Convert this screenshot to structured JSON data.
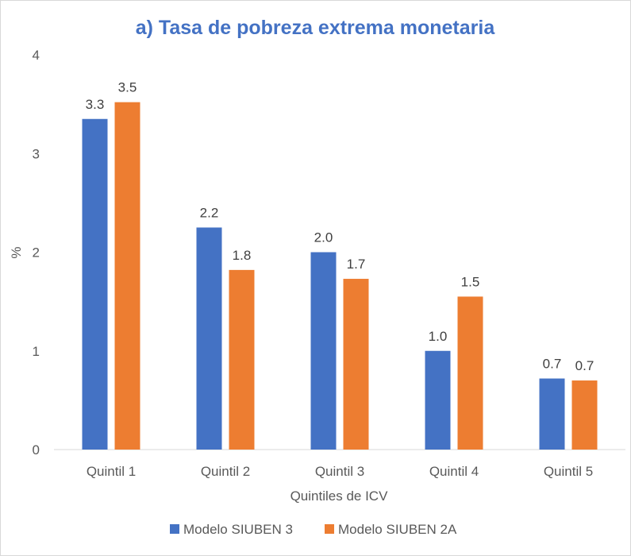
{
  "chart_data": {
    "type": "bar",
    "title": "a) Tasa de pobreza extrema monetaria",
    "xlabel": "Quintiles de ICV",
    "ylabel": "%",
    "ylim": [
      0,
      4
    ],
    "yticks": [
      "0",
      "1",
      "2",
      "3",
      "4"
    ],
    "ytick_values": [
      0,
      1,
      2,
      3,
      4
    ],
    "categories": [
      "Quintil 1",
      "Quintil 2",
      "Quintil 3",
      "Quintil 4",
      "Quintil 5"
    ],
    "series": [
      {
        "name": "Modelo SIUBEN 3",
        "color": "#4472c4",
        "values": [
          3.35,
          2.25,
          2.0,
          1.0,
          0.72
        ],
        "labels": [
          "3.3",
          "2.2",
          "2.0",
          "1.0",
          "0.7"
        ]
      },
      {
        "name": "Modelo SIUBEN 2A",
        "color": "#ed7d31",
        "values": [
          3.52,
          1.82,
          1.73,
          1.55,
          0.7
        ],
        "labels": [
          "3.5",
          "1.8",
          "1.7",
          "1.5",
          "0.7"
        ]
      }
    ],
    "grid": false,
    "legend": "bottom-center"
  }
}
